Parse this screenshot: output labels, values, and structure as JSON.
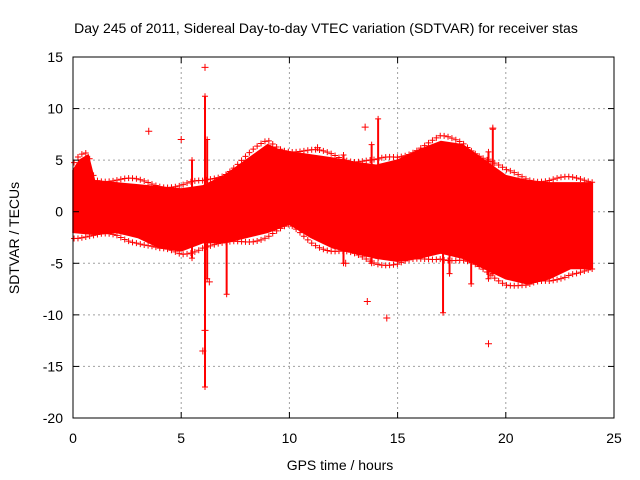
{
  "chart_data": {
    "type": "scatter",
    "title": "Day 245 of 2011, Sidereal Day-to-day VTEC variation (SDTVAR) for receiver stas",
    "xlabel": "GPS time / hours",
    "ylabel": "SDTVAR / TECUs",
    "xlim": [
      0,
      25
    ],
    "ylim": [
      -20,
      15
    ],
    "xticks": [
      0,
      5,
      10,
      15,
      20,
      25
    ],
    "yticks": [
      -20,
      -15,
      -10,
      -5,
      0,
      5,
      10,
      15
    ],
    "grid": true,
    "marker": "+",
    "color": "#ff0000",
    "band_upper": [
      [
        0,
        4.0
      ],
      [
        0.3,
        5.0
      ],
      [
        0.7,
        5.5
      ],
      [
        1.0,
        3.0
      ],
      [
        2.0,
        2.8
      ],
      [
        3.0,
        2.6
      ],
      [
        4.0,
        2.4
      ],
      [
        5.0,
        2.2
      ],
      [
        6.0,
        2.5
      ],
      [
        7.0,
        3.5
      ],
      [
        8.0,
        5.0
      ],
      [
        9.0,
        6.5
      ],
      [
        9.5,
        6.0
      ],
      [
        10.0,
        5.8
      ],
      [
        11.0,
        5.5
      ],
      [
        12.0,
        5.2
      ],
      [
        13.0,
        4.8
      ],
      [
        14.0,
        4.5
      ],
      [
        15.0,
        5.0
      ],
      [
        16.0,
        6.0
      ],
      [
        17.0,
        6.8
      ],
      [
        18.0,
        6.5
      ],
      [
        19.0,
        5.0
      ],
      [
        20.0,
        3.5
      ],
      [
        21.0,
        3.0
      ],
      [
        22.0,
        2.8
      ],
      [
        23.0,
        2.8
      ],
      [
        24.0,
        2.8
      ]
    ],
    "band_lower": [
      [
        0,
        -2.0
      ],
      [
        1.0,
        -2.2
      ],
      [
        2.0,
        -2.0
      ],
      [
        3.0,
        -2.5
      ],
      [
        4.0,
        -3.5
      ],
      [
        5.0,
        -3.8
      ],
      [
        6.0,
        -3.0
      ],
      [
        7.0,
        -3.0
      ],
      [
        8.0,
        -2.5
      ],
      [
        9.0,
        -2.0
      ],
      [
        10.0,
        -1.2
      ],
      [
        11.0,
        -2.5
      ],
      [
        12.0,
        -3.5
      ],
      [
        13.0,
        -4.0
      ],
      [
        14.0,
        -4.5
      ],
      [
        15.0,
        -4.8
      ],
      [
        16.0,
        -4.5
      ],
      [
        17.0,
        -4.0
      ],
      [
        18.0,
        -4.5
      ],
      [
        19.0,
        -5.5
      ],
      [
        20.0,
        -6.5
      ],
      [
        21.0,
        -7.0
      ],
      [
        22.0,
        -6.5
      ],
      [
        23.0,
        -5.5
      ],
      [
        24.0,
        -5.5
      ]
    ],
    "spikes": [
      {
        "x": 6.1,
        "ymin": -17.0,
        "ymax": 11.2
      },
      {
        "x": 6.2,
        "ymin": -6.5,
        "ymax": 7.0
      },
      {
        "x": 5.5,
        "ymin": -4.5,
        "ymax": 5.0
      },
      {
        "x": 7.1,
        "ymin": -8.0,
        "ymax": 3.5
      },
      {
        "x": 12.5,
        "ymin": -5.0,
        "ymax": 5.5
      },
      {
        "x": 13.8,
        "ymin": -5.0,
        "ymax": 6.5
      },
      {
        "x": 14.1,
        "ymin": -4.5,
        "ymax": 9.0
      },
      {
        "x": 17.1,
        "ymin": -9.8,
        "ymax": 4.5
      },
      {
        "x": 17.4,
        "ymin": -6.0,
        "ymax": 4.0
      },
      {
        "x": 18.4,
        "ymin": -7.0,
        "ymax": 3.5
      },
      {
        "x": 19.2,
        "ymin": -6.5,
        "ymax": 5.8
      },
      {
        "x": 19.4,
        "ymin": -6.0,
        "ymax": 8.0
      }
    ],
    "outliers": [
      [
        6.1,
        14.0
      ],
      [
        3.5,
        7.8
      ],
      [
        5.0,
        7.0
      ],
      [
        11.3,
        6.2
      ],
      [
        13.5,
        8.2
      ],
      [
        13.6,
        -8.7
      ],
      [
        14.5,
        -10.3
      ],
      [
        19.2,
        -12.8
      ],
      [
        6.0,
        -13.5
      ],
      [
        6.1,
        -11.5
      ],
      [
        19.4,
        8.1
      ],
      [
        12.6,
        -5.0
      ],
      [
        6.3,
        -6.8
      ]
    ]
  }
}
